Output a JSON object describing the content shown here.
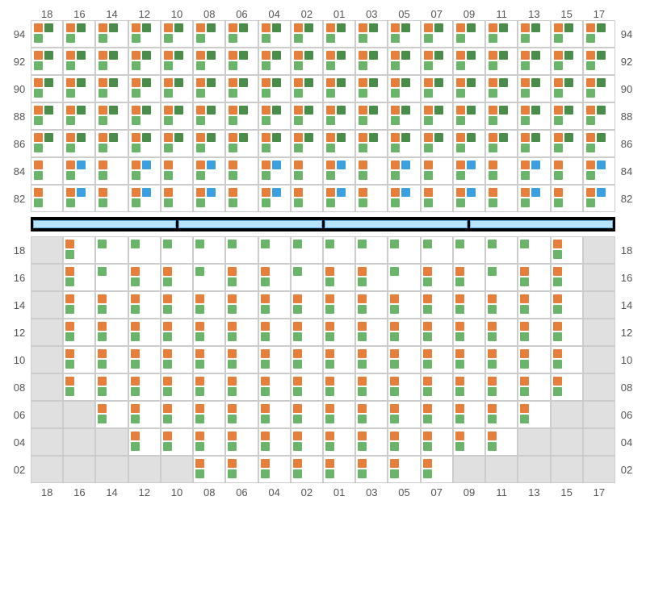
{
  "layout": {
    "columns": [
      "18",
      "16",
      "14",
      "12",
      "10",
      "08",
      "06",
      "04",
      "02",
      "01",
      "03",
      "05",
      "07",
      "09",
      "11",
      "13",
      "15",
      "17"
    ],
    "cell_colors": {
      "orange": "#e67e3c",
      "green": "#6ab56a",
      "dark_green": "#4a8c4a",
      "blue": "#3aa0e0",
      "empty_bg": "#e0e0e0",
      "grid_border": "#cccccc",
      "axis_text": "#555555"
    },
    "separator": {
      "bar_count": 4,
      "bar_color": "#b8e4ff",
      "bg": "#000000"
    }
  },
  "upper": {
    "rows": [
      "94",
      "92",
      "90",
      "88",
      "86",
      "84",
      "82"
    ],
    "pattern": {
      "94": "four",
      "92": "four",
      "90": "four",
      "88": "four",
      "86": "three",
      "84": "blue",
      "82": "blue"
    }
  },
  "lower": {
    "rows": [
      "18",
      "16",
      "14",
      "12",
      "10",
      "08",
      "06",
      "04",
      "02"
    ],
    "shape": {
      "18": {
        "start": 1,
        "end": 16,
        "stack_only_at": [
          1,
          2,
          3,
          4,
          5,
          6,
          7,
          8,
          9,
          10,
          11,
          12,
          13,
          14,
          15,
          16
        ],
        "top_orange_cols": [
          1,
          16
        ]
      },
      "16": {
        "start": 1,
        "end": 16
      },
      "14": {
        "start": 1,
        "end": 16
      },
      "12": {
        "start": 1,
        "end": 16
      },
      "10": {
        "start": 1,
        "end": 16
      },
      "08": {
        "start": 1,
        "end": 16
      },
      "06": {
        "start": 2,
        "end": 15
      },
      "04": {
        "start": 3,
        "end": 14
      },
      "02": {
        "start": 5,
        "end": 12
      }
    }
  }
}
